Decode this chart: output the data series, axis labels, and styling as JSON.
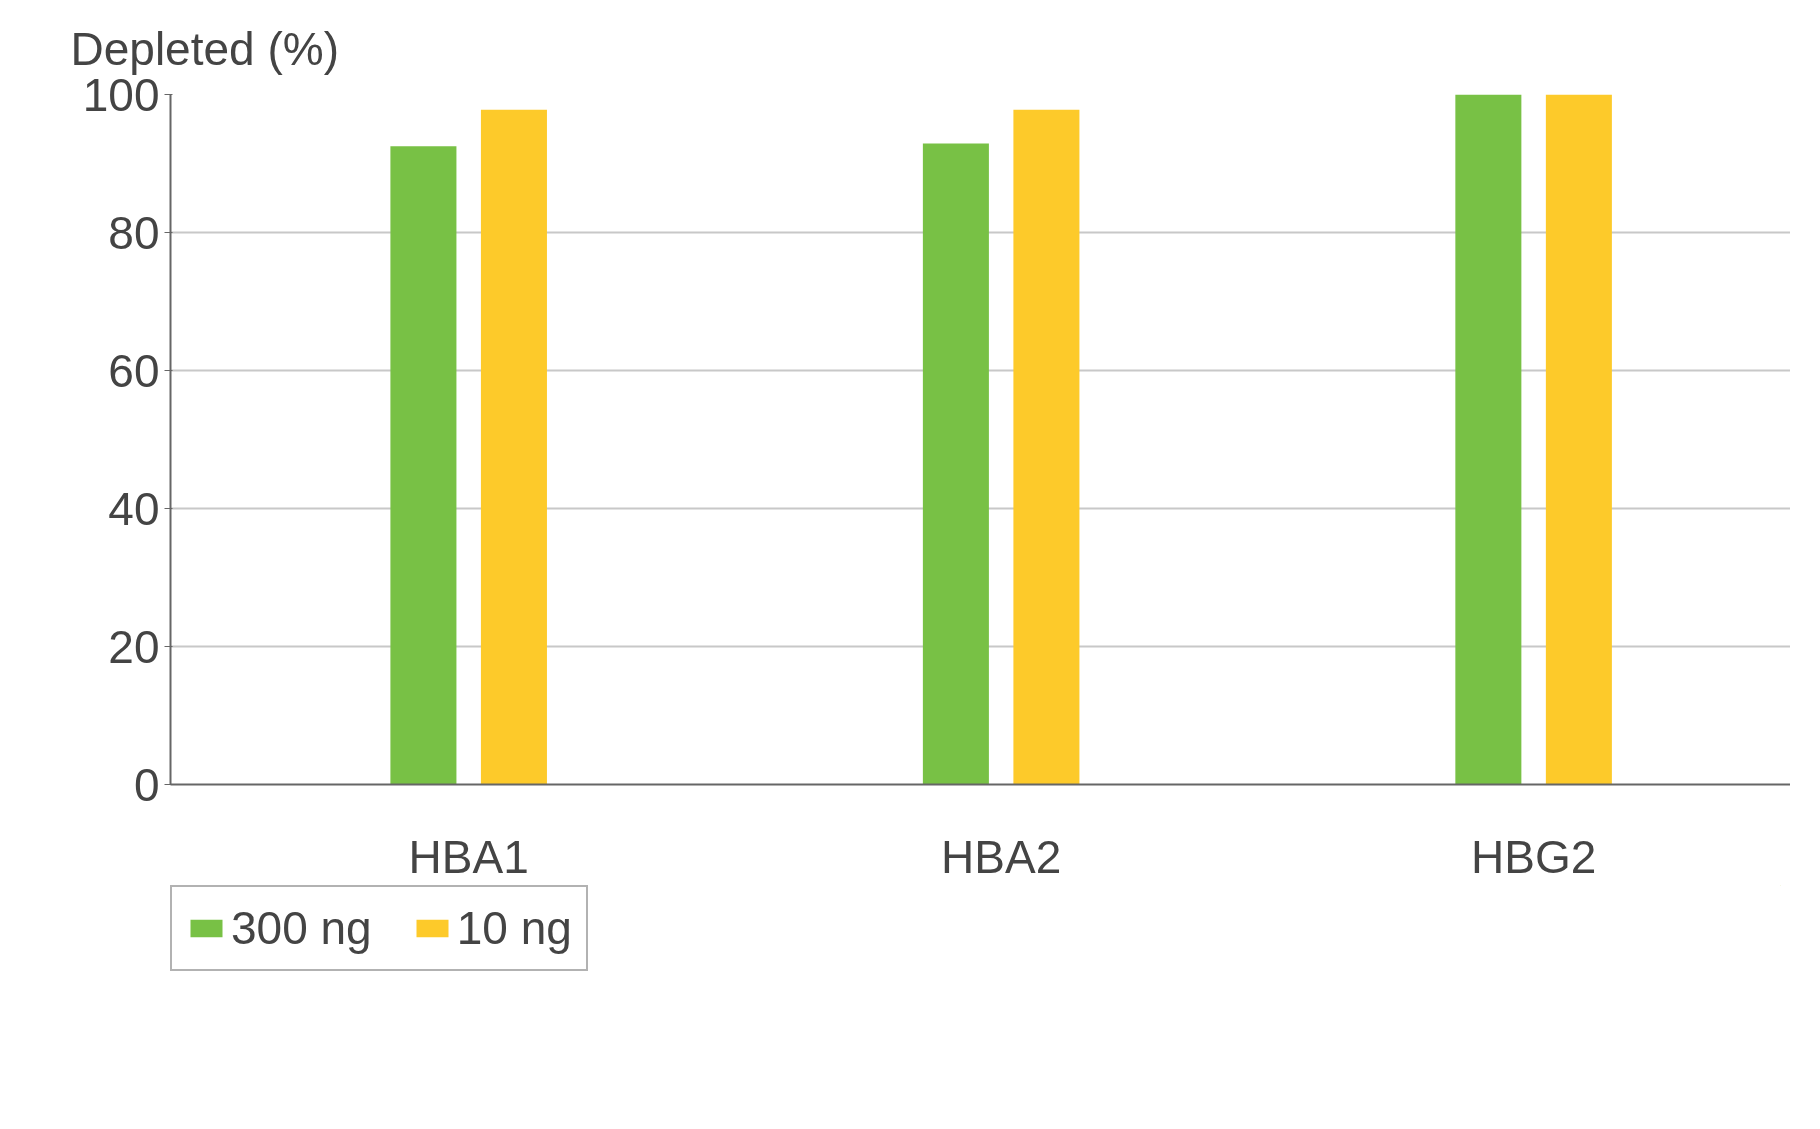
{
  "chart_data": {
    "type": "bar",
    "ylabel": "Depleted (%)",
    "categories": [
      "HBA1",
      "HBA2",
      "HBG2"
    ],
    "series": [
      {
        "name": "300 ng",
        "color": "#78c145",
        "values": [
          92.5,
          92.9,
          100
        ]
      },
      {
        "name": "10 ng",
        "color": "#fdca2a",
        "values": [
          97.8,
          97.8,
          100
        ]
      }
    ],
    "ylim": [
      0,
      100
    ],
    "yticks": [
      0,
      20,
      40,
      60,
      80,
      100
    ],
    "grid": "y",
    "legend": "bottom left"
  }
}
